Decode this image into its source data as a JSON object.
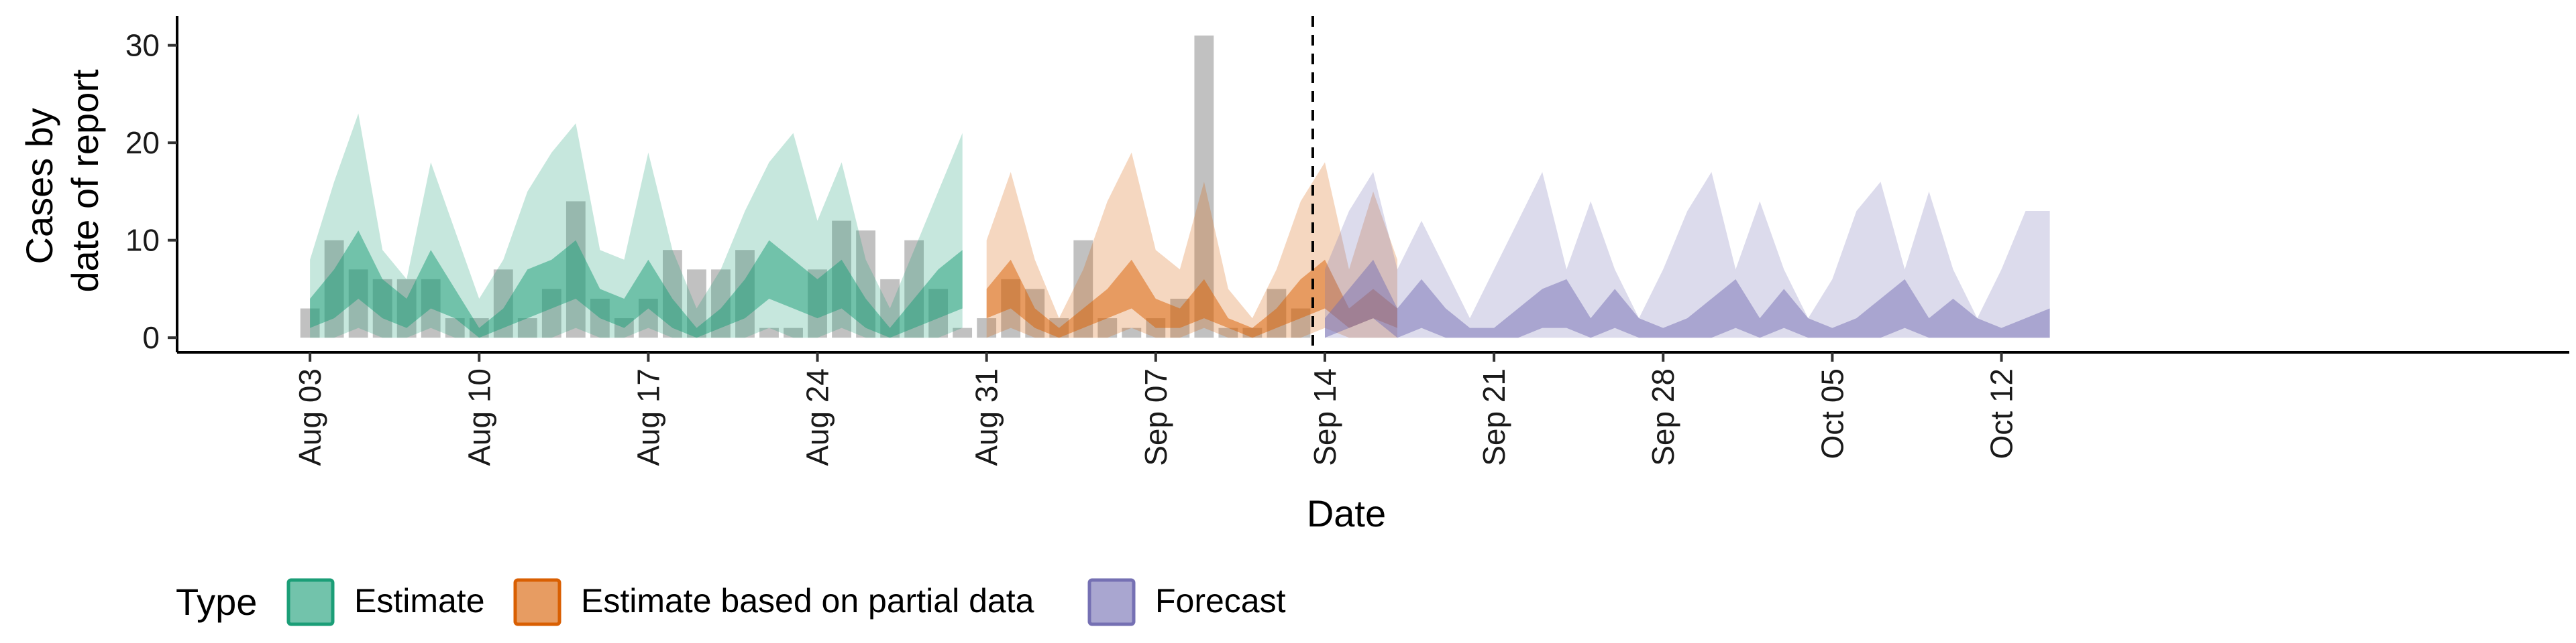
{
  "chart_data": {
    "type": "area",
    "xlabel": "Date",
    "ylabel_lines": [
      "Cases by",
      "date of report"
    ],
    "ylim": [
      -1.5,
      33
    ],
    "xlim_days": [
      -5.5,
      93.5
    ],
    "yticks": [
      0,
      10,
      20,
      30
    ],
    "x_ticks": [
      {
        "day": 0,
        "label": "Aug 03"
      },
      {
        "day": 7,
        "label": "Aug 10"
      },
      {
        "day": 14,
        "label": "Aug 17"
      },
      {
        "day": 21,
        "label": "Aug 24"
      },
      {
        "day": 28,
        "label": "Aug 31"
      },
      {
        "day": 35,
        "label": "Sep 07"
      },
      {
        "day": 42,
        "label": "Sep 14"
      },
      {
        "day": 49,
        "label": "Sep 21"
      },
      {
        "day": 56,
        "label": "Sep 28"
      },
      {
        "day": 63,
        "label": "Oct 05"
      },
      {
        "day": 70,
        "label": "Oct 12"
      }
    ],
    "start_date": "Aug 03",
    "forecast_divider_day": 41.5,
    "reported_cases": {
      "start_day": 0,
      "color": "#a6a6a6",
      "values": [
        3,
        10,
        7,
        6,
        6,
        6,
        2,
        2,
        7,
        2,
        5,
        14,
        4,
        2,
        4,
        9,
        7,
        7,
        9,
        1,
        1,
        7,
        12,
        11,
        6,
        10,
        5,
        1,
        2,
        6,
        5,
        2,
        10,
        2,
        1,
        2,
        4,
        31,
        1,
        1,
        5,
        3
      ]
    },
    "series": [
      {
        "name": "Estimate",
        "color": "#1b9e77",
        "start_day": 0,
        "median": [
          4,
          7,
          11,
          6,
          4,
          9,
          5,
          1,
          3,
          7,
          8,
          10,
          5,
          4,
          8,
          4,
          1,
          3,
          6,
          10,
          8,
          6,
          8,
          4,
          1,
          4,
          7,
          9
        ],
        "inner_low": [
          1,
          2,
          4,
          2,
          1,
          3,
          2,
          0,
          1,
          2,
          3,
          4,
          2,
          1,
          3,
          1,
          0,
          1,
          2,
          4,
          3,
          2,
          3,
          1,
          0,
          1,
          2,
          3
        ],
        "low": [
          0,
          0,
          1,
          0,
          0,
          1,
          0,
          0,
          0,
          0,
          0,
          1,
          0,
          0,
          1,
          0,
          0,
          0,
          0,
          1,
          0,
          0,
          1,
          0,
          0,
          0,
          0,
          1
        ],
        "high": [
          8,
          16,
          23,
          9,
          6,
          18,
          11,
          4,
          8,
          15,
          19,
          22,
          9,
          8,
          19,
          9,
          3,
          7,
          13,
          18,
          21,
          12,
          18,
          8,
          3,
          9,
          15,
          21
        ]
      },
      {
        "name": "Estimate based on partial data",
        "color": "#d95f02",
        "start_day": 28,
        "median": [
          5,
          8,
          3,
          1,
          3,
          5,
          8,
          4,
          3,
          6,
          2,
          1,
          3,
          6,
          8,
          3,
          5,
          3
        ],
        "inner_low": [
          2,
          3,
          1,
          0,
          1,
          2,
          3,
          1,
          1,
          2,
          1,
          0,
          1,
          2,
          3,
          1,
          2,
          1
        ],
        "low": [
          0,
          1,
          0,
          0,
          0,
          0,
          1,
          0,
          0,
          1,
          0,
          0,
          0,
          0,
          1,
          0,
          0,
          0
        ],
        "high": [
          10,
          17,
          8,
          2,
          7,
          14,
          19,
          9,
          7,
          16,
          5,
          2,
          7,
          14,
          18,
          7,
          15,
          8
        ]
      },
      {
        "name": "Forecast",
        "color": "#7570b3",
        "start_day": 42,
        "median": [
          2,
          5,
          8,
          3,
          6,
          3,
          1,
          1,
          3,
          5,
          6,
          2,
          5,
          2,
          1,
          2,
          4,
          6,
          2,
          5,
          2,
          1,
          2,
          4,
          6,
          2,
          4,
          2,
          1,
          2,
          3
        ],
        "inner_low": [
          0,
          1,
          2,
          0,
          1,
          0,
          0,
          0,
          0,
          1,
          1,
          0,
          1,
          0,
          0,
          0,
          0,
          1,
          0,
          1,
          0,
          0,
          0,
          0,
          1,
          0,
          0,
          0,
          0,
          0,
          0
        ],
        "low": [
          0,
          0,
          0,
          0,
          0,
          0,
          0,
          0,
          0,
          0,
          0,
          0,
          0,
          0,
          0,
          0,
          0,
          0,
          0,
          0,
          0,
          0,
          0,
          0,
          0,
          0,
          0,
          0,
          0,
          0,
          0
        ],
        "high": [
          7,
          13,
          17,
          7,
          12,
          7,
          2,
          7,
          12,
          17,
          7,
          14,
          7,
          2,
          7,
          13,
          17,
          7,
          14,
          7,
          2,
          6,
          13,
          16,
          7,
          15,
          7,
          2,
          7,
          13,
          13
        ]
      }
    ],
    "legend": {
      "title": "Type",
      "position": "bottom",
      "entries": [
        "Estimate",
        "Estimate based on partial data",
        "Forecast"
      ]
    }
  }
}
